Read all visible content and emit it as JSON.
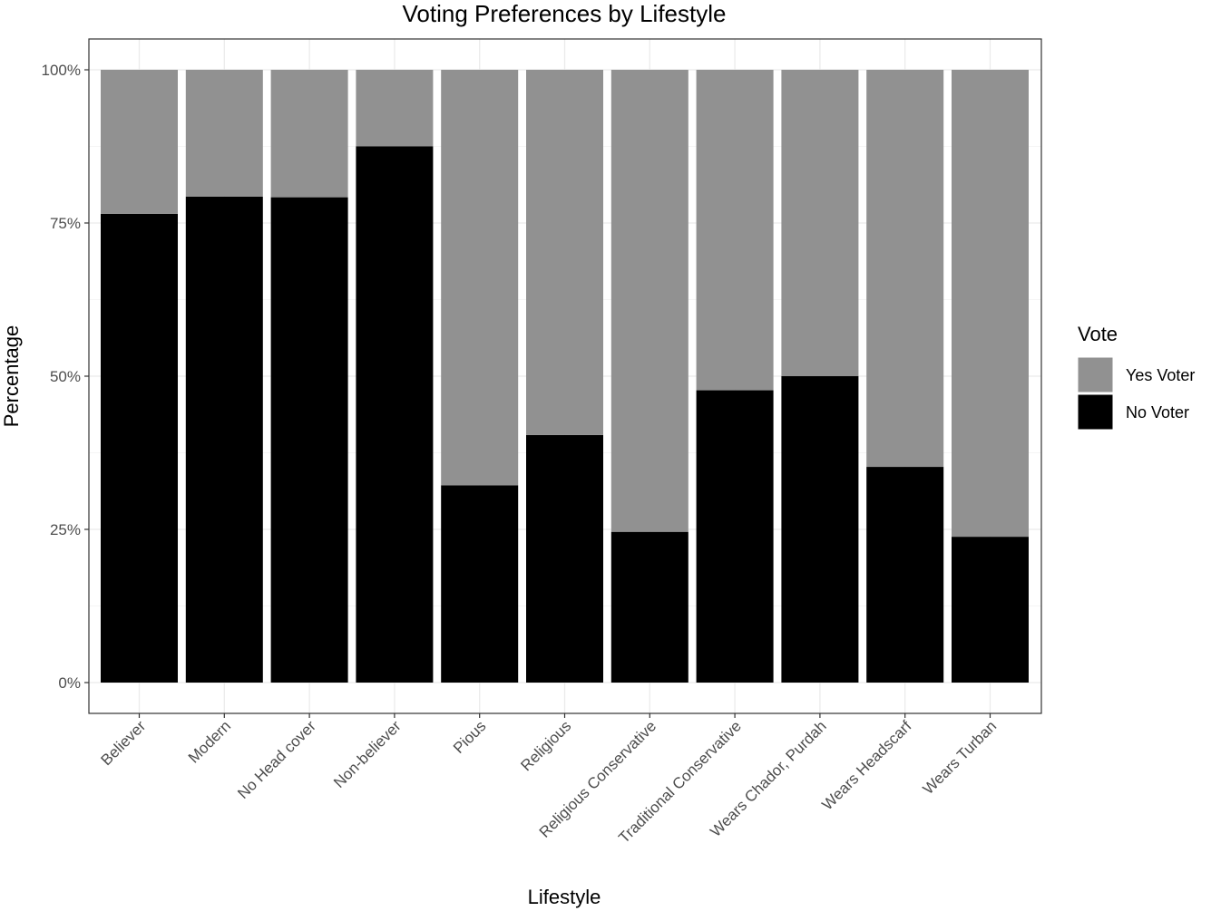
{
  "chart_data": {
    "type": "bar",
    "stacked": true,
    "percent": true,
    "title": "Voting Preferences by Lifestyle",
    "xlabel": "Lifestyle",
    "ylabel": "Percentage",
    "categories": [
      "Believer",
      "Modern",
      "No Head cover",
      "Non-believer",
      "Pious",
      "Religious",
      "Religious Conservative",
      "Traditional Conservative",
      "Wears Chador, Purdah",
      "Wears Headscarf",
      "Wears Turban"
    ],
    "series": [
      {
        "name": "No Voter",
        "color": "#000000",
        "values": [
          76.5,
          79.3,
          79.2,
          87.5,
          32.2,
          40.4,
          24.6,
          47.7,
          50.0,
          35.2,
          23.8
        ]
      },
      {
        "name": "Yes Voter",
        "color": "#919191",
        "values": [
          23.5,
          20.7,
          20.8,
          12.5,
          67.8,
          59.6,
          75.4,
          52.3,
          50.0,
          64.8,
          76.2
        ]
      }
    ],
    "ylim": [
      0,
      100
    ],
    "yticks": [
      0,
      25,
      50,
      75,
      100
    ],
    "ytick_labels": [
      "0%",
      "25%",
      "50%",
      "75%",
      "100%"
    ],
    "grid": true,
    "legend": {
      "title": "Vote",
      "position": "right",
      "entries": [
        {
          "label": "Yes Voter",
          "color": "#919191"
        },
        {
          "label": "No Voter",
          "color": "#000000"
        }
      ]
    }
  }
}
